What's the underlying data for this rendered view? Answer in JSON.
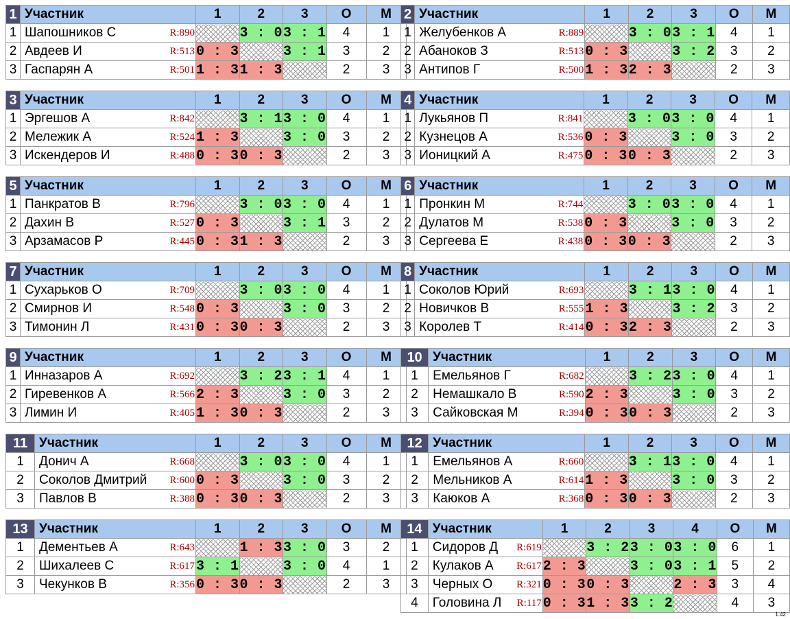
{
  "headers": {
    "participant": "Участник",
    "points": "О",
    "place": "М"
  },
  "version": "1.42",
  "groups": [
    {
      "id": "1",
      "cols": [
        "1",
        "2",
        "3"
      ],
      "rows": [
        {
          "rank": "1",
          "name": "Шапошников С",
          "rating": "R:890",
          "results": [
            "x",
            "3 : 0",
            "3 : 1"
          ],
          "kind": [
            "x",
            "w",
            "w"
          ],
          "points": "4",
          "place": "1"
        },
        {
          "rank": "2",
          "name": "Авдеев И",
          "rating": "R:513",
          "results": [
            "0 : 3",
            "x",
            "3 : 1"
          ],
          "kind": [
            "l",
            "x",
            "w"
          ],
          "points": "3",
          "place": "2"
        },
        {
          "rank": "3",
          "name": "Гаспарян А",
          "rating": "R:501",
          "results": [
            "1 : 3",
            "1 : 3",
            "x"
          ],
          "kind": [
            "l",
            "l",
            "x"
          ],
          "points": "2",
          "place": "3"
        }
      ]
    },
    {
      "id": "2",
      "cols": [
        "1",
        "2",
        "3"
      ],
      "rows": [
        {
          "rank": "1",
          "name": "Желубенков А",
          "rating": "R:889",
          "results": [
            "x",
            "3 : 0",
            "3 : 1"
          ],
          "kind": [
            "x",
            "w",
            "w"
          ],
          "points": "4",
          "place": "1"
        },
        {
          "rank": "2",
          "name": "Абаноков З",
          "rating": "R:513",
          "results": [
            "0 : 3",
            "x",
            "3 : 2"
          ],
          "kind": [
            "l",
            "x",
            "w"
          ],
          "points": "3",
          "place": "2"
        },
        {
          "rank": "3",
          "name": "Антипов Г",
          "rating": "R:500",
          "results": [
            "1 : 3",
            "2 : 3",
            "x"
          ],
          "kind": [
            "l",
            "l",
            "x"
          ],
          "points": "2",
          "place": "3"
        }
      ]
    },
    {
      "id": "3",
      "cols": [
        "1",
        "2",
        "3"
      ],
      "rows": [
        {
          "rank": "1",
          "name": "Эргешов А",
          "rating": "R:842",
          "results": [
            "x",
            "3 : 1",
            "3 : 0"
          ],
          "kind": [
            "x",
            "w",
            "w"
          ],
          "points": "4",
          "place": "1"
        },
        {
          "rank": "2",
          "name": "Мележик А",
          "rating": "R:524",
          "results": [
            "1 : 3",
            "x",
            "3 : 0"
          ],
          "kind": [
            "l",
            "x",
            "w"
          ],
          "points": "3",
          "place": "2"
        },
        {
          "rank": "3",
          "name": "Искендеров И",
          "rating": "R:488",
          "results": [
            "0 : 3",
            "0 : 3",
            "x"
          ],
          "kind": [
            "l",
            "l",
            "x"
          ],
          "points": "2",
          "place": "3"
        }
      ]
    },
    {
      "id": "4",
      "cols": [
        "1",
        "2",
        "3"
      ],
      "rows": [
        {
          "rank": "1",
          "name": "Лукьянов П",
          "rating": "R:841",
          "results": [
            "x",
            "3 : 0",
            "3 : 0"
          ],
          "kind": [
            "x",
            "w",
            "w"
          ],
          "points": "4",
          "place": "1"
        },
        {
          "rank": "2",
          "name": "Кузнецов А",
          "rating": "R:536",
          "results": [
            "0 : 3",
            "x",
            "3 : 0"
          ],
          "kind": [
            "l",
            "x",
            "w"
          ],
          "points": "3",
          "place": "2"
        },
        {
          "rank": "3",
          "name": "Ионицкий А",
          "rating": "R:475",
          "results": [
            "0 : 3",
            "0 : 3",
            "x"
          ],
          "kind": [
            "l",
            "l",
            "x"
          ],
          "points": "2",
          "place": "3"
        }
      ]
    },
    {
      "id": "5",
      "cols": [
        "1",
        "2",
        "3"
      ],
      "rows": [
        {
          "rank": "1",
          "name": "Панкратов В",
          "rating": "R:796",
          "results": [
            "x",
            "3 : 0",
            "3 : 0"
          ],
          "kind": [
            "x",
            "w",
            "w"
          ],
          "points": "4",
          "place": "1"
        },
        {
          "rank": "2",
          "name": "Дахин В",
          "rating": "R:527",
          "results": [
            "0 : 3",
            "x",
            "3 : 1"
          ],
          "kind": [
            "l",
            "x",
            "w"
          ],
          "points": "3",
          "place": "2"
        },
        {
          "rank": "3",
          "name": "Арзамасов Р",
          "rating": "R:445",
          "results": [
            "0 : 3",
            "1 : 3",
            "x"
          ],
          "kind": [
            "l",
            "l",
            "x"
          ],
          "points": "2",
          "place": "3"
        }
      ]
    },
    {
      "id": "6",
      "cols": [
        "1",
        "2",
        "3"
      ],
      "rows": [
        {
          "rank": "1",
          "name": "Пронкин М",
          "rating": "R:744",
          "results": [
            "x",
            "3 : 0",
            "3 : 0"
          ],
          "kind": [
            "x",
            "w",
            "w"
          ],
          "points": "4",
          "place": "1"
        },
        {
          "rank": "2",
          "name": "Дулатов М",
          "rating": "R:538",
          "results": [
            "0 : 3",
            "x",
            "3 : 0"
          ],
          "kind": [
            "l",
            "x",
            "w"
          ],
          "points": "3",
          "place": "2"
        },
        {
          "rank": "3",
          "name": "Сергеева Е",
          "rating": "R:438",
          "results": [
            "0 : 3",
            "0 : 3",
            "x"
          ],
          "kind": [
            "l",
            "l",
            "x"
          ],
          "points": "2",
          "place": "3"
        }
      ]
    },
    {
      "id": "7",
      "cols": [
        "1",
        "2",
        "3"
      ],
      "rows": [
        {
          "rank": "1",
          "name": "Сухарьков О",
          "rating": "R:709",
          "results": [
            "x",
            "3 : 0",
            "3 : 0"
          ],
          "kind": [
            "x",
            "w",
            "w"
          ],
          "points": "4",
          "place": "1"
        },
        {
          "rank": "2",
          "name": "Смирнов И",
          "rating": "R:548",
          "results": [
            "0 : 3",
            "x",
            "3 : 0"
          ],
          "kind": [
            "l",
            "x",
            "w"
          ],
          "points": "3",
          "place": "2"
        },
        {
          "rank": "3",
          "name": "Тимонин Л",
          "rating": "R:431",
          "results": [
            "0 : 3",
            "0 : 3",
            "x"
          ],
          "kind": [
            "l",
            "l",
            "x"
          ],
          "points": "2",
          "place": "3"
        }
      ]
    },
    {
      "id": "8",
      "cols": [
        "1",
        "2",
        "3"
      ],
      "rows": [
        {
          "rank": "1",
          "name": "Соколов Юрий",
          "rating": "R:693",
          "results": [
            "x",
            "3 : 1",
            "3 : 0"
          ],
          "kind": [
            "x",
            "w",
            "w"
          ],
          "points": "4",
          "place": "1"
        },
        {
          "rank": "2",
          "name": "Новичков В",
          "rating": "R:555",
          "results": [
            "1 : 3",
            "x",
            "3 : 2"
          ],
          "kind": [
            "l",
            "x",
            "w"
          ],
          "points": "3",
          "place": "2"
        },
        {
          "rank": "3",
          "name": "Королев Т",
          "rating": "R:414",
          "results": [
            "0 : 3",
            "2 : 3",
            "x"
          ],
          "kind": [
            "l",
            "l",
            "x"
          ],
          "points": "2",
          "place": "3"
        }
      ]
    },
    {
      "id": "9",
      "cols": [
        "1",
        "2",
        "3"
      ],
      "rows": [
        {
          "rank": "1",
          "name": "Инназаров А",
          "rating": "R:692",
          "results": [
            "x",
            "3 : 2",
            "3 : 1"
          ],
          "kind": [
            "x",
            "w",
            "w"
          ],
          "points": "4",
          "place": "1"
        },
        {
          "rank": "2",
          "name": "Гиревенков А",
          "rating": "R:566",
          "results": [
            "2 : 3",
            "x",
            "3 : 0"
          ],
          "kind": [
            "l",
            "x",
            "w"
          ],
          "points": "3",
          "place": "2"
        },
        {
          "rank": "3",
          "name": "Лимин И",
          "rating": "R:405",
          "results": [
            "1 : 3",
            "0 : 3",
            "x"
          ],
          "kind": [
            "l",
            "l",
            "x"
          ],
          "points": "2",
          "place": "3"
        }
      ]
    },
    {
      "id": "10",
      "cols": [
        "1",
        "2",
        "3"
      ],
      "rows": [
        {
          "rank": "1",
          "name": "Емельянов Г",
          "rating": "R:682",
          "results": [
            "x",
            "3 : 2",
            "3 : 0"
          ],
          "kind": [
            "x",
            "w",
            "w"
          ],
          "points": "4",
          "place": "1"
        },
        {
          "rank": "2",
          "name": "Немашкало В",
          "rating": "R:590",
          "results": [
            "2 : 3",
            "x",
            "3 : 0"
          ],
          "kind": [
            "l",
            "x",
            "w"
          ],
          "points": "3",
          "place": "2"
        },
        {
          "rank": "3",
          "name": "Сайковская М",
          "rating": "R:394",
          "results": [
            "0 : 3",
            "0 : 3",
            "x"
          ],
          "kind": [
            "l",
            "l",
            "x"
          ],
          "points": "2",
          "place": "3"
        }
      ]
    },
    {
      "id": "11",
      "cols": [
        "1",
        "2",
        "3"
      ],
      "rows": [
        {
          "rank": "1",
          "name": "Донич А",
          "rating": "R:668",
          "results": [
            "x",
            "3 : 0",
            "3 : 0"
          ],
          "kind": [
            "x",
            "w",
            "w"
          ],
          "points": "4",
          "place": "1"
        },
        {
          "rank": "2",
          "name": "Соколов Дмитрий",
          "rating": "R:600",
          "results": [
            "0 : 3",
            "x",
            "3 : 0"
          ],
          "kind": [
            "l",
            "x",
            "w"
          ],
          "points": "3",
          "place": "2"
        },
        {
          "rank": "3",
          "name": "Павлов В",
          "rating": "R:388",
          "results": [
            "0 : 3",
            "0 : 3",
            "x"
          ],
          "kind": [
            "l",
            "l",
            "x"
          ],
          "points": "2",
          "place": "3"
        }
      ]
    },
    {
      "id": "12",
      "cols": [
        "1",
        "2",
        "3"
      ],
      "rows": [
        {
          "rank": "1",
          "name": "Емельянов А",
          "rating": "R:660",
          "results": [
            "x",
            "3 : 1",
            "3 : 0"
          ],
          "kind": [
            "x",
            "w",
            "w"
          ],
          "points": "4",
          "place": "1"
        },
        {
          "rank": "2",
          "name": "Мельников А",
          "rating": "R:614",
          "results": [
            "1 : 3",
            "x",
            "3 : 0"
          ],
          "kind": [
            "l",
            "x",
            "w"
          ],
          "points": "3",
          "place": "2"
        },
        {
          "rank": "3",
          "name": "Каюков А",
          "rating": "R:368",
          "results": [
            "0 : 3",
            "0 : 3",
            "x"
          ],
          "kind": [
            "l",
            "l",
            "x"
          ],
          "points": "2",
          "place": "3"
        }
      ]
    },
    {
      "id": "13",
      "cols": [
        "1",
        "2",
        "3"
      ],
      "rows": [
        {
          "rank": "1",
          "name": "Дементьев А",
          "rating": "R:643",
          "results": [
            "x",
            "1 : 3",
            "3 : 0"
          ],
          "kind": [
            "x",
            "l",
            "w"
          ],
          "points": "3",
          "place": "2"
        },
        {
          "rank": "2",
          "name": "Шихалеев С",
          "rating": "R:617",
          "results": [
            "3 : 1",
            "x",
            "3 : 0"
          ],
          "kind": [
            "w",
            "x",
            "w"
          ],
          "points": "4",
          "place": "1"
        },
        {
          "rank": "3",
          "name": "Чекунков В",
          "rating": "R:356",
          "results": [
            "0 : 3",
            "0 : 3",
            "x"
          ],
          "kind": [
            "l",
            "l",
            "x"
          ],
          "points": "2",
          "place": "3"
        }
      ]
    },
    {
      "id": "14",
      "cols": [
        "1",
        "2",
        "3",
        "4"
      ],
      "rows": [
        {
          "rank": "1",
          "name": "Сидоров Д",
          "rating": "R:619",
          "results": [
            "x",
            "3 : 2",
            "3 : 0",
            "3 : 0"
          ],
          "kind": [
            "x",
            "w",
            "w",
            "w"
          ],
          "points": "6",
          "place": "1"
        },
        {
          "rank": "2",
          "name": "Кулаков А",
          "rating": "R:617",
          "results": [
            "2 : 3",
            "x",
            "3 : 0",
            "3 : 1"
          ],
          "kind": [
            "l",
            "x",
            "w",
            "w"
          ],
          "points": "5",
          "place": "2"
        },
        {
          "rank": "3",
          "name": "Черных О",
          "rating": "R:321",
          "results": [
            "0 : 3",
            "0 : 3",
            "x",
            "2 : 3"
          ],
          "kind": [
            "l",
            "l",
            "x",
            "l"
          ],
          "points": "3",
          "place": "4"
        },
        {
          "rank": "4",
          "name": "Головина Л",
          "rating": "R:117",
          "results": [
            "0 : 3",
            "1 : 3",
            "3 : 2",
            "x"
          ],
          "kind": [
            "l",
            "l",
            "w",
            "x"
          ],
          "points": "4",
          "place": "3"
        }
      ]
    }
  ]
}
